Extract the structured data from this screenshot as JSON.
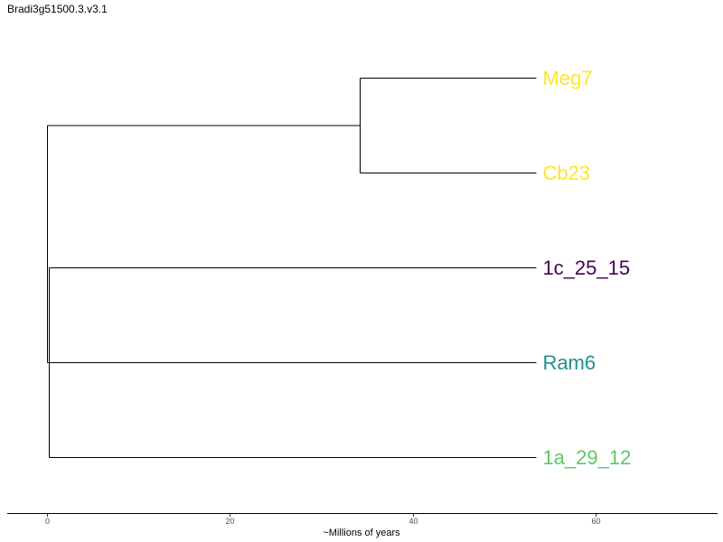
{
  "title": "Bradi3g51500.3.v3.1",
  "chart_data": {
    "type": "dendrogram",
    "title": "Bradi3g51500.3.v3.1",
    "xlabel": "~Millions of years",
    "ylabel": "",
    "xlim": [
      -4.3,
      73.3
    ],
    "xticks": [
      0,
      20,
      40,
      60
    ],
    "grid": false,
    "leaves": [
      {
        "name": "Meg7",
        "x": 53.5,
        "color": "#FDE725"
      },
      {
        "name": "Cb23",
        "x": 53.5,
        "color": "#FDE725"
      },
      {
        "name": "1c_25_15",
        "x": 53.5,
        "color": "#440154"
      },
      {
        "name": "Ram6",
        "x": 53.5,
        "color": "#21908C"
      },
      {
        "name": "1a_29_12",
        "x": 53.5,
        "color": "#5DC863"
      }
    ],
    "internal_nodes": [
      {
        "id": "meg_cb",
        "x": 34.2,
        "children": [
          "Meg7",
          "Cb23"
        ]
      },
      {
        "id": "lower",
        "x": 0.2,
        "children": [
          "1c_25_15",
          "Ram6",
          "1a_29_12"
        ]
      },
      {
        "id": "root",
        "x": 0,
        "children": [
          "meg_cb",
          "lower"
        ]
      }
    ]
  }
}
